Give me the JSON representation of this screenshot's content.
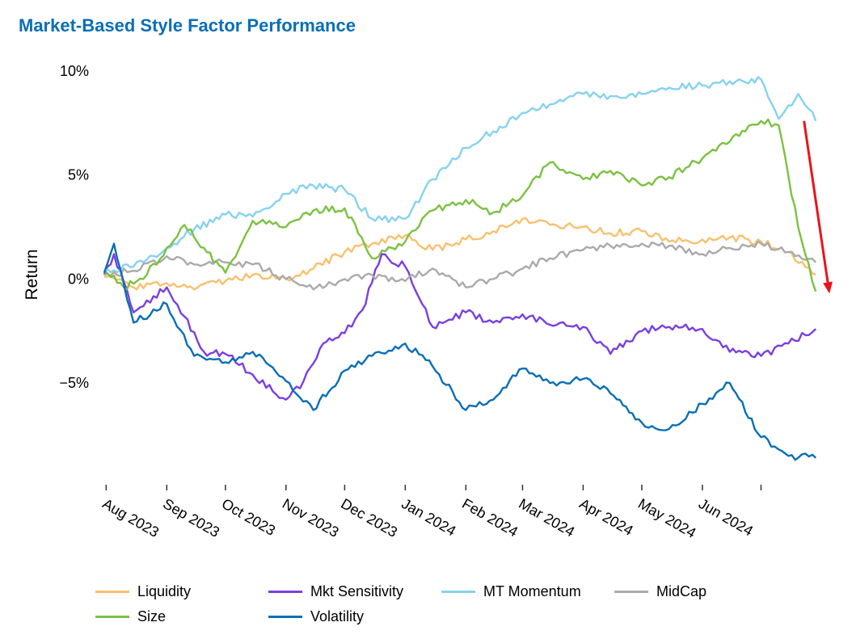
{
  "title": "Market-Based Style Factor Performance",
  "chart_data": {
    "type": "line",
    "title": "Market-Based Style Factor Performance",
    "xlabel": "",
    "ylabel": "Return",
    "ylim": [
      -9.5,
      10.5
    ],
    "xlim": [
      "2023-07-24",
      "2024-07-31"
    ],
    "y_ticks": [
      10,
      5,
      0,
      -5
    ],
    "y_tick_labels": [
      "10%",
      "5%",
      "0%",
      "−5%"
    ],
    "x_ticks": [
      "2023-08-01",
      "2023-09-01",
      "2023-10-01",
      "2023-11-01",
      "2023-12-01",
      "2024-01-01",
      "2024-02-01",
      "2024-03-01",
      "2024-04-01",
      "2024-05-01",
      "2024-06-01",
      "2024-07-01"
    ],
    "x_tick_labels": [
      "Aug 2023",
      "Sep 2023",
      "Oct 2023",
      "Nov 2023",
      "Dec 2023",
      "Jan 2024",
      "Feb 2024",
      "Mar 2024",
      "Apr 2024",
      "May 2024",
      "Jun 2024",
      ""
    ],
    "grid": false,
    "legend_position": "bottom",
    "series": [
      {
        "name": "Liquidity",
        "color": "#f9c06e",
        "x": [
          "2023-07-31",
          "2023-08-15",
          "2023-09-01",
          "2023-09-15",
          "2023-10-01",
          "2023-10-15",
          "2023-11-01",
          "2023-11-15",
          "2023-12-01",
          "2023-12-15",
          "2024-01-01",
          "2024-01-15",
          "2024-02-01",
          "2024-02-15",
          "2024-03-01",
          "2024-03-15",
          "2024-04-01",
          "2024-04-15",
          "2024-05-01",
          "2024-05-15",
          "2024-06-01",
          "2024-06-15",
          "2024-07-01",
          "2024-07-15",
          "2024-07-29"
        ],
        "values": [
          0.1,
          -0.4,
          -0.2,
          -0.5,
          -0.1,
          0.2,
          0.0,
          0.5,
          1.3,
          1.7,
          2.1,
          1.4,
          1.9,
          2.3,
          2.9,
          2.6,
          2.5,
          2.2,
          2.3,
          1.8,
          1.9,
          2.0,
          1.8,
          1.3,
          0.2
        ]
      },
      {
        "name": "Mkt Sensitivity",
        "color": "#7a3fe0",
        "x": [
          "2023-07-31",
          "2023-08-05",
          "2023-08-15",
          "2023-09-01",
          "2023-09-10",
          "2023-09-20",
          "2023-10-01",
          "2023-10-15",
          "2023-11-01",
          "2023-11-10",
          "2023-11-20",
          "2023-12-01",
          "2023-12-10",
          "2023-12-20",
          "2024-01-01",
          "2024-01-15",
          "2024-02-01",
          "2024-02-15",
          "2024-03-01",
          "2024-03-15",
          "2024-04-01",
          "2024-04-15",
          "2024-05-01",
          "2024-05-15",
          "2024-06-01",
          "2024-06-15",
          "2024-07-01",
          "2024-07-15",
          "2024-07-29"
        ],
        "values": [
          0.2,
          1.2,
          -1.6,
          -0.4,
          -1.8,
          -3.5,
          -3.6,
          -4.6,
          -5.8,
          -4.9,
          -3.1,
          -2.6,
          -1.5,
          1.2,
          0.6,
          -2.3,
          -1.6,
          -2.1,
          -1.7,
          -2.2,
          -2.3,
          -3.6,
          -2.5,
          -2.3,
          -2.4,
          -3.5,
          -3.7,
          -3.1,
          -2.4
        ]
      },
      {
        "name": "MT Momentum",
        "color": "#86d2f0",
        "x": [
          "2023-07-31",
          "2023-08-15",
          "2023-09-01",
          "2023-09-15",
          "2023-10-01",
          "2023-10-15",
          "2023-11-01",
          "2023-11-15",
          "2023-12-01",
          "2023-12-15",
          "2024-01-01",
          "2024-01-15",
          "2024-02-01",
          "2024-02-15",
          "2024-03-01",
          "2024-03-15",
          "2024-04-01",
          "2024-04-15",
          "2024-05-01",
          "2024-05-15",
          "2024-06-01",
          "2024-06-15",
          "2024-07-01",
          "2024-07-10",
          "2024-07-20",
          "2024-07-29"
        ],
        "values": [
          0.4,
          0.6,
          1.5,
          2.4,
          3.1,
          3.0,
          4.1,
          4.5,
          4.3,
          2.9,
          2.9,
          4.8,
          6.3,
          7.1,
          8.0,
          8.4,
          8.9,
          8.8,
          8.9,
          9.2,
          9.3,
          9.5,
          9.6,
          7.7,
          8.9,
          7.6
        ]
      },
      {
        "name": "MidCap",
        "color": "#aaaaaa",
        "x": [
          "2023-07-31",
          "2023-08-15",
          "2023-09-01",
          "2023-09-15",
          "2023-10-01",
          "2023-10-15",
          "2023-11-01",
          "2023-11-15",
          "2023-12-01",
          "2023-12-15",
          "2024-01-01",
          "2024-01-15",
          "2024-02-01",
          "2024-02-15",
          "2024-03-01",
          "2024-03-15",
          "2024-04-01",
          "2024-04-15",
          "2024-05-01",
          "2024-05-15",
          "2024-06-01",
          "2024-06-15",
          "2024-07-01",
          "2024-07-15",
          "2024-07-29"
        ],
        "values": [
          0.2,
          0.4,
          1.1,
          0.7,
          0.8,
          0.7,
          0.0,
          -0.5,
          0.0,
          0.2,
          -0.1,
          0.5,
          -0.4,
          0.0,
          0.5,
          1.0,
          1.4,
          1.6,
          1.7,
          1.6,
          1.2,
          1.5,
          1.7,
          1.3,
          0.8
        ]
      },
      {
        "name": "Size",
        "color": "#7bc142",
        "x": [
          "2023-07-31",
          "2023-08-10",
          "2023-08-20",
          "2023-09-01",
          "2023-09-10",
          "2023-09-20",
          "2023-10-01",
          "2023-10-15",
          "2023-11-01",
          "2023-11-15",
          "2023-12-01",
          "2023-12-15",
          "2024-01-01",
          "2024-01-15",
          "2024-02-01",
          "2024-02-15",
          "2024-03-01",
          "2024-03-15",
          "2024-04-01",
          "2024-04-15",
          "2024-05-01",
          "2024-05-15",
          "2024-06-01",
          "2024-06-15",
          "2024-07-01",
          "2024-07-10",
          "2024-07-20",
          "2024-07-29"
        ],
        "values": [
          0.4,
          -0.4,
          0.0,
          1.5,
          2.6,
          1.5,
          0.3,
          2.8,
          2.5,
          3.3,
          3.4,
          1.0,
          1.8,
          3.3,
          3.8,
          3.2,
          4.0,
          5.6,
          4.8,
          5.2,
          4.5,
          4.9,
          5.8,
          6.6,
          7.6,
          7.4,
          2.5,
          -0.6
        ]
      },
      {
        "name": "Volatility",
        "color": "#0a6fb5",
        "x": [
          "2023-07-31",
          "2023-08-05",
          "2023-08-15",
          "2023-09-01",
          "2023-09-15",
          "2023-10-01",
          "2023-10-15",
          "2023-11-01",
          "2023-11-15",
          "2023-12-01",
          "2023-12-15",
          "2024-01-01",
          "2024-01-15",
          "2024-02-01",
          "2024-02-15",
          "2024-03-01",
          "2024-03-15",
          "2024-04-01",
          "2024-04-15",
          "2024-05-01",
          "2024-05-15",
          "2024-06-01",
          "2024-06-15",
          "2024-07-01",
          "2024-07-15",
          "2024-07-29"
        ],
        "values": [
          0.3,
          1.7,
          -2.1,
          -1.2,
          -3.7,
          -4.0,
          -3.5,
          -4.9,
          -6.3,
          -4.4,
          -3.7,
          -3.1,
          -4.2,
          -6.3,
          -5.8,
          -4.3,
          -5.0,
          -4.8,
          -5.5,
          -6.9,
          -7.2,
          -6.0,
          -5.0,
          -7.6,
          -8.5,
          -8.6
        ]
      }
    ],
    "annotations": [
      {
        "type": "arrow",
        "color": "#e8131c",
        "from": [
          "2024-07-23",
          7.6
        ],
        "to": [
          "2024-08-05",
          -0.7
        ]
      }
    ]
  }
}
